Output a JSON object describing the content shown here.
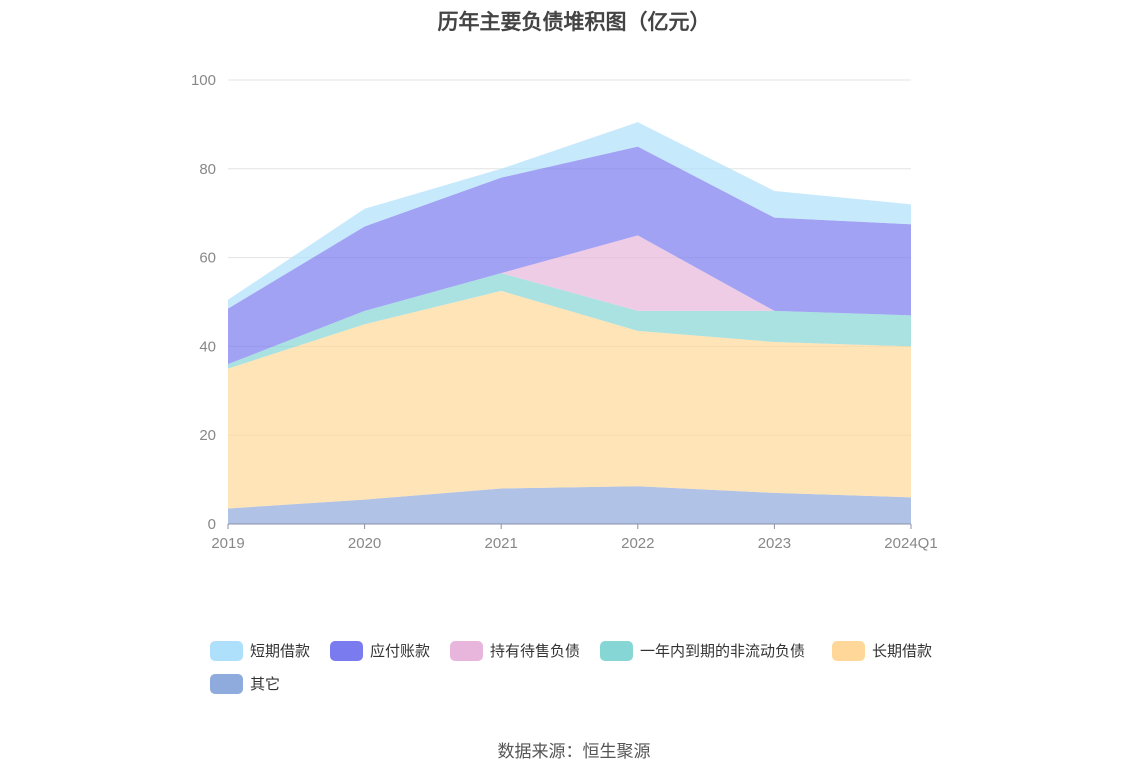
{
  "chart_data": {
    "type": "area",
    "stacked": true,
    "title": "历年主要负债堆积图（亿元）",
    "categories": [
      "2019",
      "2020",
      "2021",
      "2022",
      "2023",
      "2024Q1"
    ],
    "ylim": [
      0,
      100
    ],
    "yticks": [
      0,
      20,
      40,
      60,
      80,
      100
    ],
    "grid": true,
    "legend_position": "bottom",
    "series": [
      {
        "name": "其它",
        "color": "#8faadc",
        "values": [
          3.5,
          5.5,
          8.0,
          8.5,
          7.0,
          6.0
        ]
      },
      {
        "name": "长期借款",
        "color": "#ffd899",
        "values": [
          31.5,
          39.5,
          44.5,
          35.0,
          34.0,
          34.0
        ]
      },
      {
        "name": "一年内到期的非流动负债",
        "color": "#86d6d6",
        "values": [
          1.0,
          3.0,
          4.0,
          4.5,
          7.0,
          7.0
        ]
      },
      {
        "name": "持有待售负债",
        "color": "#e8b6dc",
        "values": [
          0,
          0,
          0,
          17.0,
          0,
          0
        ]
      },
      {
        "name": "应付账款",
        "color": "#7b7bf0",
        "values": [
          12.5,
          19.0,
          21.5,
          20.0,
          21.0,
          20.5
        ]
      },
      {
        "name": "短期借款",
        "color": "#aee0fb",
        "values": [
          2.0,
          4.0,
          2.0,
          5.5,
          6.0,
          4.5
        ]
      }
    ],
    "legend_order": [
      "短期借款",
      "应付账款",
      "持有待售负债",
      "一年内到期的非流动负债",
      "长期借款",
      "其它"
    ]
  },
  "source_text": "数据来源：恒生聚源"
}
